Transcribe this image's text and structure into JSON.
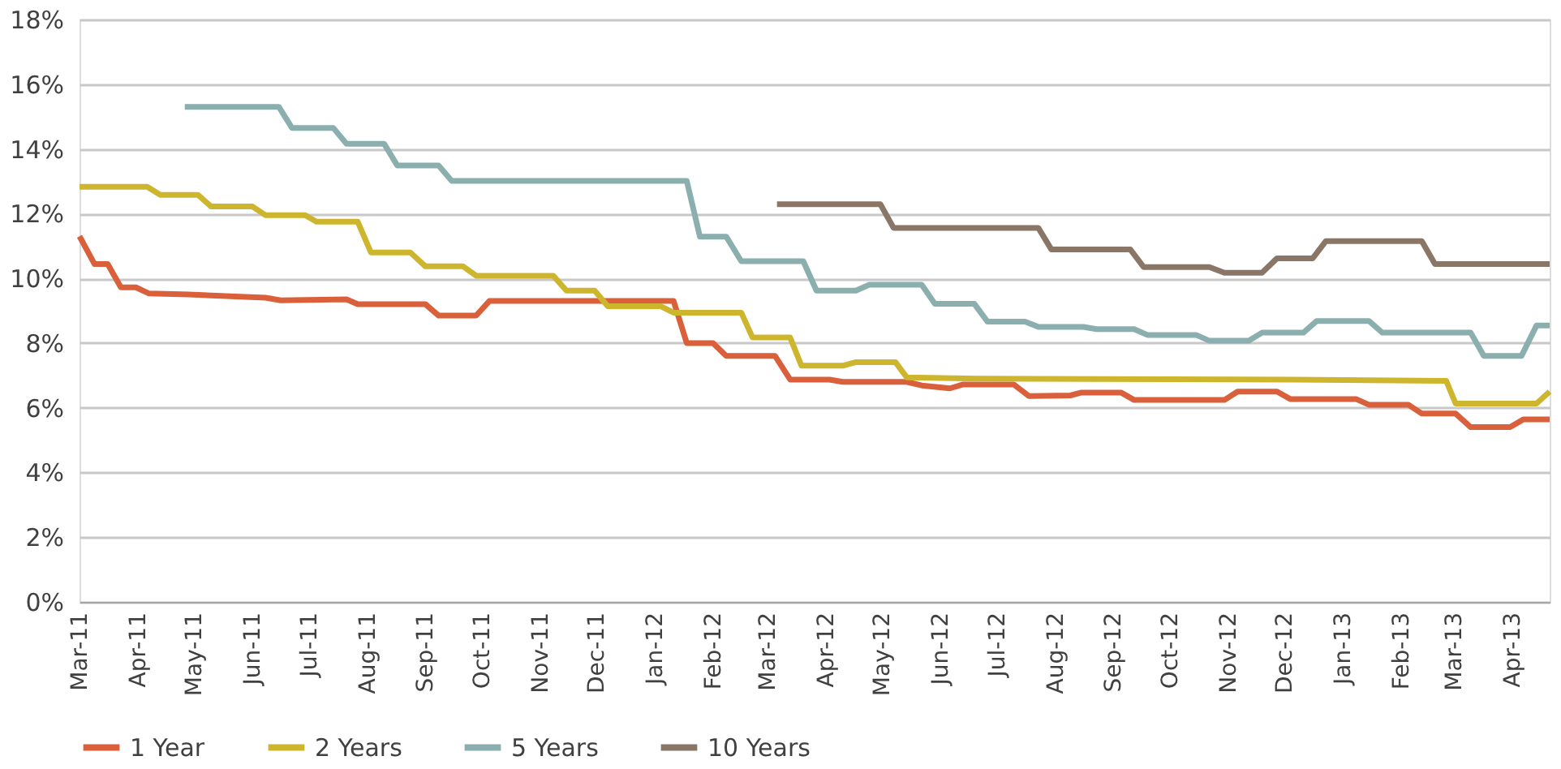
{
  "chart_data": {
    "type": "line",
    "xlim": [
      "2011-03-01",
      "2013-04-21"
    ],
    "xticks": [
      {
        "value": "2011-03-01",
        "label": "Mar-11"
      },
      {
        "value": "2011-04-01",
        "label": "Apr-11"
      },
      {
        "value": "2011-05-01",
        "label": "May-11"
      },
      {
        "value": "2011-06-01",
        "label": "Jun-11"
      },
      {
        "value": "2011-07-01",
        "label": "Jul-11"
      },
      {
        "value": "2011-08-01",
        "label": "Aug-11"
      },
      {
        "value": "2011-09-01",
        "label": "Sep-11"
      },
      {
        "value": "2011-10-01",
        "label": "Oct-11"
      },
      {
        "value": "2011-11-01",
        "label": "Nov-11"
      },
      {
        "value": "2011-12-01",
        "label": "Dec-11"
      },
      {
        "value": "2012-01-01",
        "label": "Jan-12"
      },
      {
        "value": "2012-02-01",
        "label": "Feb-12"
      },
      {
        "value": "2012-03-01",
        "label": "Mar-12"
      },
      {
        "value": "2012-04-01",
        "label": "Apr-12"
      },
      {
        "value": "2012-05-01",
        "label": "May-12"
      },
      {
        "value": "2012-06-01",
        "label": "Jun-12"
      },
      {
        "value": "2012-07-01",
        "label": "Jul-12"
      },
      {
        "value": "2012-08-01",
        "label": "Aug-12"
      },
      {
        "value": "2012-09-01",
        "label": "Sep-12"
      },
      {
        "value": "2012-10-01",
        "label": "Oct-12"
      },
      {
        "value": "2012-11-01",
        "label": "Nov-12"
      },
      {
        "value": "2012-12-01",
        "label": "Dec-12"
      },
      {
        "value": "2013-01-01",
        "label": "Jan-13"
      },
      {
        "value": "2013-02-01",
        "label": "Feb-13"
      },
      {
        "value": "2013-03-01",
        "label": "Mar-13"
      },
      {
        "value": "2013-04-01",
        "label": "Apr-13"
      }
    ],
    "ylim": [
      0,
      18
    ],
    "yticks": [
      {
        "value": 0,
        "label": "0%"
      },
      {
        "value": 2,
        "label": "2%"
      },
      {
        "value": 4,
        "label": "4%"
      },
      {
        "value": 6,
        "label": "6%"
      },
      {
        "value": 8,
        "label": "8%"
      },
      {
        "value": 10,
        "label": "10%"
      },
      {
        "value": 12,
        "label": "12%"
      },
      {
        "value": 14,
        "label": "14%"
      },
      {
        "value": 16,
        "label": "16%"
      },
      {
        "value": 18,
        "label": "18%"
      }
    ],
    "grid": "y",
    "legend": "bottom",
    "marker": "none",
    "series": [
      {
        "name": "1 Year",
        "color": "#d9603b",
        "x": [
          "2011-03-01",
          "2011-03-09",
          "2011-03-16",
          "2011-03-23",
          "2011-03-31",
          "2011-04-07",
          "2011-04-28",
          "2011-06-08",
          "2011-06-16",
          "2011-07-21",
          "2011-07-27",
          "2011-09-01",
          "2011-09-08",
          "2011-09-28",
          "2011-10-05",
          "2012-01-11",
          "2012-01-18",
          "2012-02-01",
          "2012-02-08",
          "2012-03-05",
          "2012-03-13",
          "2012-04-03",
          "2012-04-10",
          "2012-05-14",
          "2012-05-22",
          "2012-06-06",
          "2012-06-13",
          "2012-07-10",
          "2012-07-18",
          "2012-08-09",
          "2012-08-15",
          "2012-09-05",
          "2012-09-12",
          "2012-10-30",
          "2012-11-06",
          "2012-11-27",
          "2012-12-04",
          "2013-01-08",
          "2013-01-15",
          "2013-02-05",
          "2013-02-12",
          "2013-03-02",
          "2013-03-10",
          "2013-03-31",
          "2013-04-07",
          "2013-04-21"
        ],
        "values": [
          11.3,
          10.44,
          10.44,
          9.72,
          9.72,
          9.53,
          9.5,
          9.4,
          9.32,
          9.35,
          9.2,
          9.2,
          8.85,
          8.85,
          9.3,
          9.3,
          8.0,
          8.0,
          7.6,
          7.6,
          6.87,
          6.87,
          6.8,
          6.8,
          6.69,
          6.6,
          6.72,
          6.72,
          6.36,
          6.38,
          6.47,
          6.47,
          6.24,
          6.24,
          6.5,
          6.5,
          6.27,
          6.27,
          6.09,
          6.09,
          5.82,
          5.82,
          5.4,
          5.4,
          5.64,
          5.64
        ]
      },
      {
        "name": "2 Years",
        "color": "#cdb52d",
        "x": [
          "2011-03-01",
          "2011-04-06",
          "2011-04-13",
          "2011-05-03",
          "2011-05-10",
          "2011-06-01",
          "2011-06-08",
          "2011-06-29",
          "2011-07-05",
          "2011-07-27",
          "2011-08-03",
          "2011-08-24",
          "2011-09-01",
          "2011-09-21",
          "2011-09-28",
          "2011-11-08",
          "2011-11-15",
          "2011-11-30",
          "2011-12-07",
          "2012-01-04",
          "2012-01-11",
          "2012-02-16",
          "2012-02-22",
          "2012-03-13",
          "2012-03-19",
          "2012-04-10",
          "2012-04-17",
          "2012-05-08",
          "2012-05-14",
          "2012-06-20",
          "2012-12-06",
          "2013-02-25",
          "2013-03-02",
          "2013-04-14",
          "2013-04-21"
        ],
        "values": [
          12.83,
          12.83,
          12.58,
          12.58,
          12.22,
          12.22,
          11.95,
          11.95,
          11.75,
          11.75,
          10.8,
          10.8,
          10.37,
          10.37,
          10.08,
          10.08,
          9.62,
          9.62,
          9.14,
          9.14,
          8.94,
          8.94,
          8.17,
          8.17,
          7.3,
          7.3,
          7.41,
          7.41,
          6.94,
          6.9,
          6.87,
          6.83,
          6.13,
          6.13,
          6.5
        ]
      },
      {
        "name": "5 Years",
        "color": "#8aafae",
        "x": [
          "2011-04-26",
          "2011-06-15",
          "2011-06-22",
          "2011-07-14",
          "2011-07-21",
          "2011-08-10",
          "2011-08-17",
          "2011-09-08",
          "2011-09-15",
          "2012-01-18",
          "2012-01-25",
          "2012-02-08",
          "2012-02-16",
          "2012-03-20",
          "2012-03-27",
          "2012-04-17",
          "2012-04-24",
          "2012-05-22",
          "2012-05-29",
          "2012-06-19",
          "2012-06-26",
          "2012-07-16",
          "2012-07-23",
          "2012-08-16",
          "2012-08-23",
          "2012-09-12",
          "2012-09-19",
          "2012-10-15",
          "2012-10-22",
          "2012-11-12",
          "2012-11-19",
          "2012-12-11",
          "2012-12-18",
          "2013-01-15",
          "2013-01-22",
          "2013-03-10",
          "2013-03-17",
          "2013-04-06",
          "2013-04-14",
          "2013-04-21"
        ],
        "values": [
          15.3,
          15.3,
          14.65,
          14.65,
          14.16,
          14.16,
          13.49,
          13.49,
          13.01,
          13.01,
          11.29,
          11.29,
          10.53,
          10.53,
          9.62,
          9.62,
          9.8,
          9.8,
          9.21,
          9.21,
          8.66,
          8.66,
          8.5,
          8.5,
          8.43,
          8.43,
          8.25,
          8.25,
          8.07,
          8.07,
          8.32,
          8.32,
          8.68,
          8.68,
          8.32,
          8.32,
          7.6,
          7.6,
          8.54,
          8.54
        ]
      },
      {
        "name": "10 Years",
        "color": "#8a7667",
        "x": [
          "2012-03-06",
          "2012-04-30",
          "2012-05-07",
          "2012-07-23",
          "2012-07-30",
          "2012-09-10",
          "2012-09-17",
          "2012-10-22",
          "2012-10-30",
          "2012-11-19",
          "2012-11-27",
          "2012-12-16",
          "2012-12-23",
          "2013-02-12",
          "2013-02-19",
          "2013-04-21"
        ],
        "values": [
          12.29,
          12.29,
          11.56,
          11.56,
          10.89,
          10.89,
          10.35,
          10.35,
          10.17,
          10.17,
          10.62,
          10.62,
          11.15,
          11.15,
          10.44,
          10.44
        ]
      }
    ]
  }
}
